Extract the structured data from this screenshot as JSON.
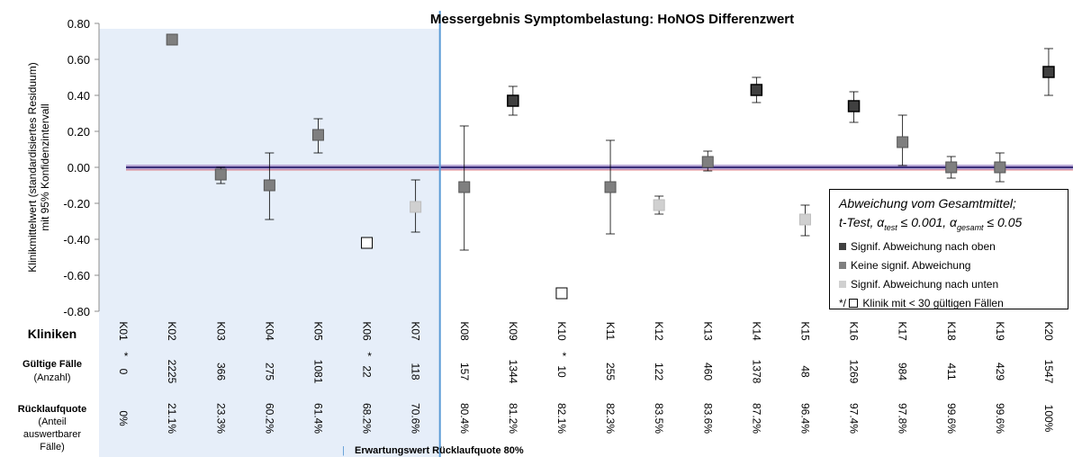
{
  "chart_data": {
    "type": "scatter",
    "title": "Messergebnis Symptombelastung: HoNOS Differenzwert",
    "ylabel_line1": "Klinikmittelwert (standardisiertes Residuum)",
    "ylabel_line2": "mit 95% Konfidenzintervall",
    "ylim": [
      -0.8,
      0.8
    ],
    "yticks": [
      "0.80",
      "0.60",
      "0.40",
      "0.20",
      "0.00",
      "-0.20",
      "-0.40",
      "-0.60",
      "-0.80"
    ],
    "reference_line_y": 0,
    "grid": false,
    "row_labels": {
      "kliniken": "Kliniken",
      "faelle_1": "Gültige Fälle",
      "faelle_2": "(Anzahl)",
      "quote_1": "Rücklaufquote",
      "quote_2": "(Anteil",
      "quote_3": "auswertbarer",
      "quote_4": "Fälle)"
    },
    "threshold_label": "Erwartungswert Rücklaufquote 80%",
    "clinics": [
      {
        "id": "K01",
        "n": "0",
        "star": true,
        "quote": "0%",
        "value": null,
        "ci_low": null,
        "ci_high": null,
        "category": "small"
      },
      {
        "id": "K02",
        "n": "2225",
        "star": false,
        "quote": "21.1%",
        "value": 0.71,
        "ci_low": null,
        "ci_high": null,
        "category": "none"
      },
      {
        "id": "K03",
        "n": "366",
        "star": false,
        "quote": "23.3%",
        "value": -0.04,
        "ci_low": -0.09,
        "ci_high": 0.0,
        "category": "none"
      },
      {
        "id": "K04",
        "n": "275",
        "star": false,
        "quote": "60.2%",
        "value": -0.1,
        "ci_low": -0.29,
        "ci_high": 0.08,
        "category": "none"
      },
      {
        "id": "K05",
        "n": "1081",
        "star": false,
        "quote": "61.4%",
        "value": 0.18,
        "ci_low": 0.08,
        "ci_high": 0.27,
        "category": "none"
      },
      {
        "id": "K06",
        "n": "22",
        "star": true,
        "quote": "68.2%",
        "value": -0.42,
        "ci_low": null,
        "ci_high": null,
        "category": "small"
      },
      {
        "id": "K07",
        "n": "118",
        "star": false,
        "quote": "70.6%",
        "value": -0.22,
        "ci_low": -0.36,
        "ci_high": -0.07,
        "category": "below"
      },
      {
        "id": "K08",
        "n": "157",
        "star": false,
        "quote": "80.4%",
        "value": -0.11,
        "ci_low": -0.46,
        "ci_high": 0.23,
        "category": "none"
      },
      {
        "id": "K09",
        "n": "1344",
        "star": false,
        "quote": "81.2%",
        "value": 0.37,
        "ci_low": 0.29,
        "ci_high": 0.45,
        "category": "above"
      },
      {
        "id": "K10",
        "n": "10",
        "star": true,
        "quote": "82.1%",
        "value": -0.7,
        "ci_low": null,
        "ci_high": null,
        "category": "small"
      },
      {
        "id": "K11",
        "n": "255",
        "star": false,
        "quote": "82.3%",
        "value": -0.11,
        "ci_low": -0.37,
        "ci_high": 0.15,
        "category": "none"
      },
      {
        "id": "K12",
        "n": "122",
        "star": false,
        "quote": "83.5%",
        "value": -0.21,
        "ci_low": -0.26,
        "ci_high": -0.16,
        "category": "below"
      },
      {
        "id": "K13",
        "n": "460",
        "star": false,
        "quote": "83.6%",
        "value": 0.03,
        "ci_low": -0.02,
        "ci_high": 0.09,
        "category": "none"
      },
      {
        "id": "K14",
        "n": "1378",
        "star": false,
        "quote": "87.2%",
        "value": 0.43,
        "ci_low": 0.36,
        "ci_high": 0.5,
        "category": "above"
      },
      {
        "id": "K15",
        "n": "48",
        "star": false,
        "quote": "96.4%",
        "value": -0.29,
        "ci_low": -0.38,
        "ci_high": -0.21,
        "category": "below"
      },
      {
        "id": "K16",
        "n": "1269",
        "star": false,
        "quote": "97.4%",
        "value": 0.34,
        "ci_low": 0.25,
        "ci_high": 0.42,
        "category": "above"
      },
      {
        "id": "K17",
        "n": "984",
        "star": false,
        "quote": "97.8%",
        "value": 0.14,
        "ci_low": 0.01,
        "ci_high": 0.29,
        "category": "none"
      },
      {
        "id": "K18",
        "n": "411",
        "star": false,
        "quote": "99.6%",
        "value": 0.0,
        "ci_low": -0.06,
        "ci_high": 0.06,
        "category": "none"
      },
      {
        "id": "K19",
        "n": "429",
        "star": false,
        "quote": "99.6%",
        "value": 0.0,
        "ci_low": -0.08,
        "ci_high": 0.08,
        "category": "none"
      },
      {
        "id": "K20",
        "n": "1547",
        "star": false,
        "quote": "100%",
        "value": 0.53,
        "ci_low": 0.4,
        "ci_high": 0.66,
        "category": "above"
      }
    ],
    "legend": {
      "title": "Abweichung vom Gesamtmittel;",
      "test_prefix": "t-Test, α",
      "test_sub": "test",
      "test_mid": " ≤ 0.001, α",
      "test_sub2": "gesamt",
      "test_end": " ≤ 0.05",
      "items": [
        {
          "key": "above",
          "label": "Signif. Abweichung nach oben"
        },
        {
          "key": "none",
          "label": "Keine signif. Abweichung"
        },
        {
          "key": "below",
          "label": "Signif. Abweichung nach unten"
        }
      ],
      "small_prefix": "*/",
      "small_label": "Klinik mit < 30 gültigen Fällen"
    },
    "colors": {
      "above": "#404040",
      "none": "#7f7f7f",
      "below": "#d0d0d0",
      "shaded_region": "#e6eef9",
      "divider": "#5b9bd5",
      "reference_line": "#3a2f7a"
    }
  }
}
